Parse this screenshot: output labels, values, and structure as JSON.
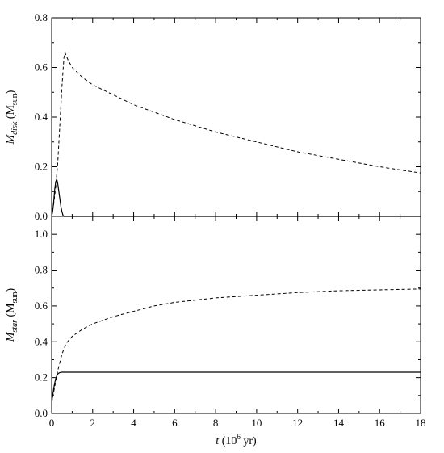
{
  "chart_data": [
    {
      "type": "line",
      "ylabel_parts": {
        "sym": "M",
        "sub": "disk",
        "unit_open": " (M",
        "unit_sub": "sun",
        "unit_close": ")"
      },
      "xlim": [
        0,
        18
      ],
      "ylim": [
        0,
        0.8
      ],
      "xticks": [
        0,
        2,
        4,
        6,
        8,
        10,
        12,
        14,
        16,
        18
      ],
      "xtick_labels": [],
      "yticks": [
        0.0,
        0.2,
        0.4,
        0.6,
        0.8
      ],
      "ytick_labels": [
        "0.0",
        "0.2",
        "0.4",
        "0.6",
        "0.8"
      ],
      "series": [
        {
          "style": "dashed",
          "x": [
            0,
            0.1,
            0.2,
            0.3,
            0.4,
            0.5,
            0.6,
            0.65,
            0.8,
            1.0,
            1.5,
            2,
            3,
            4,
            5,
            6,
            8,
            10,
            12,
            14,
            16,
            18
          ],
          "y": [
            0.0,
            0.05,
            0.12,
            0.22,
            0.37,
            0.52,
            0.64,
            0.66,
            0.63,
            0.6,
            0.56,
            0.53,
            0.49,
            0.45,
            0.42,
            0.39,
            0.34,
            0.3,
            0.26,
            0.23,
            0.2,
            0.175
          ]
        },
        {
          "style": "solid",
          "x": [
            0,
            0.05,
            0.1,
            0.15,
            0.2,
            0.25,
            0.3,
            0.35,
            0.4,
            0.45,
            0.5,
            0.55,
            0.6,
            0.7,
            1.0,
            18
          ],
          "y": [
            0.0,
            0.02,
            0.06,
            0.11,
            0.14,
            0.15,
            0.13,
            0.1,
            0.07,
            0.04,
            0.02,
            0.005,
            0.0,
            0.0,
            0.0,
            0.0
          ]
        }
      ]
    },
    {
      "type": "line",
      "ylabel_parts": {
        "sym": "M",
        "sub": "star",
        "unit_open": " (M",
        "unit_sub": "sun",
        "unit_close": ")"
      },
      "xlabel_parts": {
        "sym": "t",
        "rest_open": " (10",
        "sup": "6",
        "rest_close": " yr)"
      },
      "xlim": [
        0,
        18
      ],
      "ylim": [
        0,
        1.1
      ],
      "xticks": [
        0,
        2,
        4,
        6,
        8,
        10,
        12,
        14,
        16,
        18
      ],
      "xtick_labels": [
        "0",
        "2",
        "4",
        "6",
        "8",
        "10",
        "12",
        "14",
        "16",
        "18"
      ],
      "yticks": [
        0.0,
        0.2,
        0.4,
        0.6,
        0.8,
        1.0
      ],
      "ytick_labels": [
        "0.0",
        "0.2",
        "0.4",
        "0.6",
        "0.8",
        "1.0"
      ],
      "series": [
        {
          "style": "dashed",
          "x": [
            0,
            0.1,
            0.2,
            0.3,
            0.5,
            0.7,
            1.0,
            1.5,
            2,
            3,
            4,
            5,
            6,
            8,
            10,
            12,
            14,
            16,
            18
          ],
          "y": [
            0.06,
            0.12,
            0.18,
            0.24,
            0.33,
            0.39,
            0.43,
            0.47,
            0.5,
            0.54,
            0.57,
            0.6,
            0.62,
            0.645,
            0.66,
            0.675,
            0.685,
            0.69,
            0.695
          ]
        },
        {
          "style": "solid",
          "x": [
            0,
            0.05,
            0.1,
            0.15,
            0.2,
            0.25,
            0.3,
            0.35,
            0.4,
            0.5,
            0.6,
            1.0,
            18
          ],
          "y": [
            0.06,
            0.1,
            0.14,
            0.17,
            0.195,
            0.21,
            0.22,
            0.225,
            0.228,
            0.23,
            0.23,
            0.23,
            0.23
          ]
        }
      ]
    }
  ]
}
